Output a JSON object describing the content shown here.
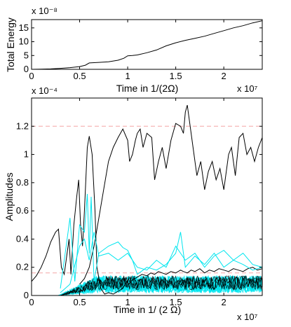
{
  "chart_data": [
    {
      "type": "line",
      "xlabel": "Time in 1/(2Ω)",
      "ylabel": "Total Energy",
      "x_exponent_label": "x 10⁷",
      "y_exponent_label": "x 10⁻⁸",
      "xlim": [
        0,
        2.4
      ],
      "ylim": [
        0,
        18
      ],
      "xticks": [
        "0",
        "0.5",
        "1",
        "1.5",
        "2"
      ],
      "yticks": [
        "0",
        "5",
        "10",
        "15"
      ],
      "grid": false,
      "series": [
        {
          "color": "#000000",
          "x": [
            0,
            0.1,
            0.2,
            0.3,
            0.4,
            0.5,
            0.56,
            0.6,
            0.7,
            0.8,
            0.9,
            0.96,
            1.0,
            1.05,
            1.1,
            1.2,
            1.3,
            1.4,
            1.5,
            1.6,
            1.7,
            1.8,
            1.9,
            2.0,
            2.1,
            2.2,
            2.3,
            2.4
          ],
          "y": [
            0,
            0.05,
            0.15,
            0.35,
            0.6,
            1.0,
            1.5,
            2.3,
            2.5,
            2.7,
            3.3,
            4.0,
            4.9,
            5.0,
            5.2,
            6.0,
            7.0,
            8.5,
            9.6,
            10.5,
            11.2,
            12.0,
            13.0,
            14.0,
            15.0,
            15.8,
            16.8,
            17.6
          ]
        }
      ]
    },
    {
      "type": "line",
      "xlabel": "Time in 1/ (2 Ω)",
      "ylabel": "Amplitudes",
      "x_exponent_label": "x 10⁷",
      "y_exponent_label": "x 10⁻⁴",
      "xlim": [
        0,
        2.4
      ],
      "ylim": [
        0,
        1.4
      ],
      "xticks": [
        "0",
        "0.5",
        "1",
        "1.5",
        "2"
      ],
      "yticks": [
        "0",
        "0.2",
        "0.4",
        "0.6",
        "0.8",
        "1",
        "1.2"
      ],
      "grid": false,
      "reference_lines": [
        {
          "y": 1.2,
          "color": "#f4a6a6",
          "style": "dashed"
        },
        {
          "y": 0.16,
          "color": "#f4a6a6",
          "style": "dashed"
        }
      ],
      "colors": {
        "primary_series": "#000000",
        "secondary_series": "#00e5ee"
      },
      "series": [
        {
          "color": "#000000",
          "x": [
            0,
            0.05,
            0.1,
            0.15,
            0.2,
            0.25,
            0.28,
            0.31,
            0.34,
            0.37,
            0.39,
            0.41,
            0.44,
            0.47,
            0.49,
            0.51,
            0.53,
            0.55,
            0.58,
            0.6,
            0.63,
            0.66,
            0.68,
            0.72,
            0.76,
            0.8,
            0.85,
            0.9,
            0.95,
            0.99,
            1.01,
            1.05,
            1.1,
            1.15,
            1.2,
            1.24,
            1.28,
            1.32,
            1.36,
            1.4,
            1.45,
            1.5,
            1.55,
            1.58,
            1.62,
            1.66,
            1.7,
            1.75,
            1.8,
            1.85,
            1.9,
            1.95,
            2.0,
            2.05,
            2.1,
            2.15,
            2.2,
            2.25,
            2.3,
            2.35,
            2.4
          ],
          "y": [
            0.1,
            0.14,
            0.2,
            0.28,
            0.38,
            0.45,
            0.47,
            0.2,
            0.15,
            0.3,
            0.4,
            0.15,
            0.5,
            0.7,
            0.82,
            0.5,
            0.35,
            0.6,
            1.05,
            1.13,
            1.0,
            0.6,
            0.2,
            0.05,
            0.01,
            0.02,
            0.01,
            0.03,
            0.05,
            0.1,
            0.08,
            0.11,
            0.13,
            0.15,
            0.14,
            0.16,
            0.15,
            0.17,
            0.16,
            0.15,
            0.17,
            0.16,
            0.18,
            0.17,
            0.16,
            0.18,
            0.17,
            0.19,
            0.16,
            0.18,
            0.17,
            0.19,
            0.18,
            0.17,
            0.19,
            0.18,
            0.17,
            0.19,
            0.2,
            0.18,
            0.19
          ]
        },
        {
          "color": "#000000",
          "x": [
            0.5,
            0.55,
            0.6,
            0.65,
            0.7,
            0.75,
            0.8,
            0.85,
            0.9,
            0.95,
            1.0,
            1.02,
            1.05,
            1.08,
            1.1,
            1.13,
            1.16,
            1.2,
            1.25,
            1.28,
            1.32,
            1.36,
            1.4,
            1.45,
            1.5,
            1.55,
            1.58,
            1.6,
            1.62,
            1.65,
            1.68,
            1.72,
            1.76,
            1.8,
            1.84,
            1.88,
            1.92,
            1.96,
            2.0,
            2.05,
            2.08,
            2.12,
            2.16,
            2.2,
            2.24,
            2.28,
            2.32,
            2.36,
            2.4
          ],
          "y": [
            0.08,
            0.12,
            0.2,
            0.35,
            0.55,
            0.75,
            0.95,
            1.05,
            1.12,
            1.18,
            1.1,
            0.95,
            1.0,
            1.1,
            1.15,
            1.18,
            1.05,
            1.15,
            1.12,
            0.82,
            0.95,
            1.05,
            0.9,
            1.1,
            1.22,
            1.2,
            1.15,
            1.3,
            1.35,
            1.2,
            1.05,
            0.85,
            0.95,
            0.75,
            0.88,
            0.95,
            0.82,
            0.9,
            0.75,
            1.0,
            1.05,
            0.85,
            1.12,
            1.15,
            1.0,
            1.05,
            0.95,
            1.05,
            1.12
          ]
        },
        {
          "color": "#00e5ee",
          "x": [
            0.3,
            0.35,
            0.4,
            0.45,
            0.5,
            0.55,
            0.58,
            0.6,
            0.62,
            0.65,
            0.7,
            0.8,
            0.9,
            0.95,
            1.0,
            1.05,
            1.1,
            1.2,
            1.3,
            1.4,
            1.5,
            1.55,
            1.6,
            1.7,
            1.8,
            1.9,
            2.0,
            2.1,
            2.2,
            2.3,
            2.4
          ],
          "y": [
            0.05,
            0.3,
            0.55,
            0.1,
            0.5,
            0.45,
            0.72,
            0.3,
            0.7,
            0.1,
            0.3,
            0.35,
            0.38,
            0.34,
            0.32,
            0.25,
            0.15,
            0.2,
            0.18,
            0.22,
            0.3,
            0.45,
            0.2,
            0.28,
            0.22,
            0.3,
            0.2,
            0.25,
            0.22,
            0.18,
            0.2
          ]
        },
        {
          "color": "#00e5ee",
          "x": [
            0.3,
            0.4,
            0.5,
            0.55,
            0.6,
            0.65,
            0.7,
            0.8,
            0.9,
            1.0,
            1.1,
            1.2,
            1.3,
            1.4,
            1.5,
            1.6,
            1.7,
            1.8,
            1.9,
            2.0,
            2.1,
            2.2,
            2.3,
            2.4
          ],
          "y": [
            0.02,
            0.08,
            0.35,
            0.4,
            0.25,
            0.45,
            0.28,
            0.3,
            0.25,
            0.3,
            0.2,
            0.18,
            0.25,
            0.2,
            0.35,
            0.25,
            0.3,
            0.2,
            0.28,
            0.32,
            0.25,
            0.3,
            0.22,
            0.2
          ]
        }
      ]
    }
  ]
}
